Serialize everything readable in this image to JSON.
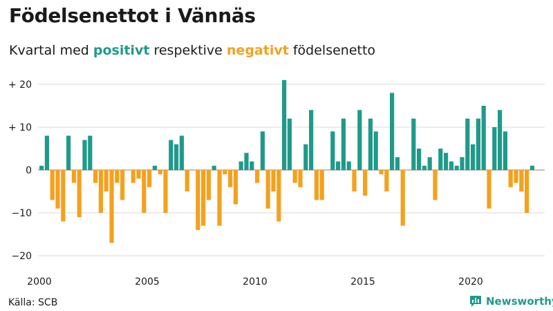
{
  "title": "Födelsenettot i Vännäs",
  "subtitle": {
    "part1": "Kvartal med ",
    "positive_word": "positivt",
    "part2": " respektive ",
    "negative_word": "negativt",
    "part3": " födelsenetto"
  },
  "source": "Källa: SCB",
  "brand": "Newsworthy",
  "colors": {
    "positive": "#1f9a8a",
    "negative": "#f4a11d",
    "grid": "#d9d9d9",
    "text": "#1a1a1a"
  },
  "chart_data": {
    "type": "bar",
    "start_year": 2000,
    "start_quarter": 1,
    "values": [
      1,
      8,
      -7,
      -9,
      -12,
      8,
      -3,
      -11,
      7,
      8,
      -3,
      -10,
      -5,
      -17,
      -3,
      -7,
      0,
      -3,
      -2,
      -10,
      -4,
      1,
      -1,
      -10,
      7,
      6,
      8,
      -5,
      0,
      -14,
      -13,
      -7,
      1,
      -13,
      -1,
      -4,
      -8,
      2,
      4,
      2,
      -3,
      9,
      -9,
      -5,
      -12,
      21,
      12,
      -3,
      -4,
      6,
      14,
      -7,
      -7,
      0,
      9,
      2,
      12,
      2,
      -5,
      14,
      -6,
      12,
      9,
      -1,
      -5,
      18,
      3,
      -13,
      0,
      12,
      5,
      1,
      3,
      -7,
      5,
      4,
      2,
      1,
      3,
      12,
      6,
      12,
      15,
      -9,
      10,
      14,
      9,
      -4,
      -3,
      -5,
      -10,
      1
    ],
    "ylim": [
      -20,
      21
    ],
    "yticks": [
      20,
      10,
      0,
      -10,
      -20
    ],
    "ytick_labels": [
      "+ 20",
      "+ 10",
      "0",
      "−10",
      "−20"
    ],
    "xticks": [
      2000,
      2005,
      2010,
      2015,
      2020
    ],
    "xtick_labels": [
      "2000",
      "2005",
      "2010",
      "2015",
      "2020"
    ],
    "grid": true
  }
}
